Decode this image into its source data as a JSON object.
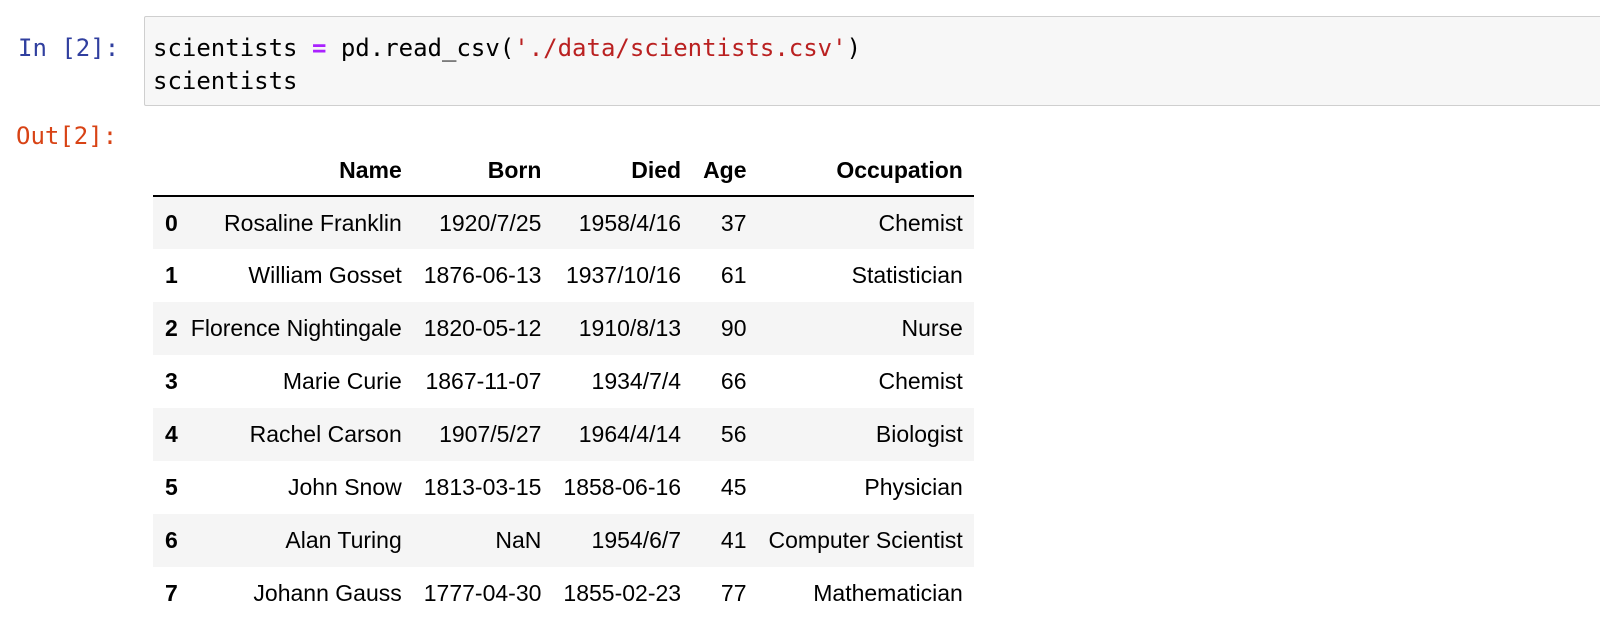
{
  "input_cell": {
    "prompt": "In [2]:",
    "line1": {
      "var": "scientists",
      "op": "=",
      "call": "pd.read_csv(",
      "arg": "'./data/scientists.csv'",
      "close": ")"
    },
    "line2": "scientists"
  },
  "output_cell": {
    "prompt": "Out[2]:"
  },
  "dataframe": {
    "columns": [
      "Name",
      "Born",
      "Died",
      "Age",
      "Occupation"
    ],
    "rows": [
      {
        "index": "0",
        "cells": [
          "Rosaline Franklin",
          "1920/7/25",
          "1958/4/16",
          "37",
          "Chemist"
        ]
      },
      {
        "index": "1",
        "cells": [
          "William Gosset",
          "1876-06-13",
          "1937/10/16",
          "61",
          "Statistician"
        ]
      },
      {
        "index": "2",
        "cells": [
          "Florence Nightingale",
          "1820-05-12",
          "1910/8/13",
          "90",
          "Nurse"
        ]
      },
      {
        "index": "3",
        "cells": [
          "Marie Curie",
          "1867-11-07",
          "1934/7/4",
          "66",
          "Chemist"
        ]
      },
      {
        "index": "4",
        "cells": [
          "Rachel Carson",
          "1907/5/27",
          "1964/4/14",
          "56",
          "Biologist"
        ]
      },
      {
        "index": "5",
        "cells": [
          "John Snow",
          "1813-03-15",
          "1858-06-16",
          "45",
          "Physician"
        ]
      },
      {
        "index": "6",
        "cells": [
          "Alan Turing",
          "NaN",
          "1954/6/7",
          "41",
          "Computer Scientist"
        ]
      },
      {
        "index": "7",
        "cells": [
          "Johann Gauss",
          "1777-04-30",
          "1855-02-23",
          "77",
          "Mathematician"
        ]
      }
    ]
  },
  "colors": {
    "in_prompt": "#303f9f",
    "out_prompt": "#d84315",
    "string": "#ba2121",
    "operator": "#aa22ff",
    "input_bg": "#f7f7f7",
    "stripe_bg": "#f5f5f5"
  }
}
